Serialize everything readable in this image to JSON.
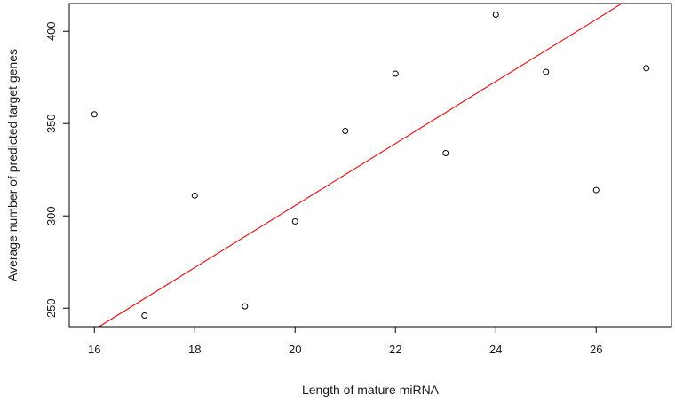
{
  "chart_data": {
    "type": "scatter",
    "title": "",
    "xlabel": "Length of mature miRNA",
    "ylabel": "Average number of predicted target genes",
    "xlim": [
      15.5,
      27.5
    ],
    "ylim": [
      240,
      415
    ],
    "x_ticks": [
      16,
      18,
      20,
      22,
      24,
      26
    ],
    "y_ticks": [
      250,
      300,
      350,
      400
    ],
    "grid": false,
    "legend": "none",
    "series": [
      {
        "points": [
          {
            "x": 16,
            "y": 355
          },
          {
            "x": 17,
            "y": 246
          },
          {
            "x": 18,
            "y": 311
          },
          {
            "x": 19,
            "y": 251
          },
          {
            "x": 20,
            "y": 297
          },
          {
            "x": 21,
            "y": 346
          },
          {
            "x": 22,
            "y": 377
          },
          {
            "x": 23,
            "y": 334
          },
          {
            "x": 24,
            "y": 409
          },
          {
            "x": 25,
            "y": 378
          },
          {
            "x": 26,
            "y": 314
          },
          {
            "x": 27,
            "y": 380
          }
        ]
      }
    ],
    "fit_line": {
      "type": "linear",
      "slope": 16.8,
      "intercept": -30.4,
      "color": "#e31a1c"
    },
    "point_color": "#000000"
  }
}
